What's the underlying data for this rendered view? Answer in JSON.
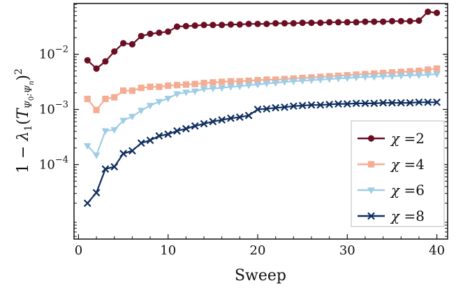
{
  "chart_data": {
    "type": "line",
    "xlabel": "Sweep",
    "ylabel": "1 − λ₁(T_Ψ₀:Ψₙ)²",
    "yscale": "log",
    "xlim": [
      -0.5,
      41.2
    ],
    "ylim_log10": [
      -5.35,
      -1.08
    ],
    "x_ticks": [
      0,
      10,
      20,
      30,
      40
    ],
    "x_tick_labels": [
      "0",
      "10",
      "20",
      "30",
      "40"
    ],
    "y_ticks_log10": [
      -4,
      -3,
      -2
    ],
    "y_tick_labels": [
      {
        "base": "10",
        "exp": "−4"
      },
      {
        "base": "10",
        "exp": "−3"
      },
      {
        "base": "10",
        "exp": "−2"
      }
    ],
    "grid": false,
    "legend_position": "lower-right",
    "x": [
      1,
      2,
      3,
      4,
      5,
      6,
      7,
      8,
      9,
      10,
      11,
      12,
      13,
      14,
      15,
      16,
      17,
      18,
      19,
      20,
      21,
      22,
      23,
      24,
      25,
      26,
      27,
      28,
      29,
      30,
      31,
      32,
      33,
      34,
      35,
      36,
      37,
      38,
      39,
      40
    ],
    "series": [
      {
        "name": "χ =2",
        "legend_symbol": "χ",
        "legend_value": "=2",
        "color": "#6b0e24",
        "marker": "circle",
        "values_log10": [
          -2.11,
          -2.26,
          -2.13,
          -1.95,
          -1.8,
          -1.82,
          -1.67,
          -1.63,
          -1.61,
          -1.59,
          -1.5,
          -1.49,
          -1.48,
          -1.47,
          -1.47,
          -1.47,
          -1.46,
          -1.46,
          -1.45,
          -1.45,
          -1.45,
          -1.44,
          -1.44,
          -1.44,
          -1.43,
          -1.43,
          -1.43,
          -1.42,
          -1.42,
          -1.42,
          -1.42,
          -1.41,
          -1.41,
          -1.41,
          -1.4,
          -1.4,
          -1.4,
          -1.39,
          -1.23,
          -1.25
        ]
      },
      {
        "name": "χ =4",
        "legend_symbol": "χ",
        "legend_value": "=4",
        "color": "#f4ad93",
        "marker": "square",
        "values_log10": [
          -2.81,
          -3.01,
          -2.81,
          -2.78,
          -2.66,
          -2.66,
          -2.61,
          -2.59,
          -2.59,
          -2.57,
          -2.56,
          -2.55,
          -2.54,
          -2.52,
          -2.51,
          -2.5,
          -2.49,
          -2.49,
          -2.48,
          -2.47,
          -2.46,
          -2.46,
          -2.45,
          -2.44,
          -2.43,
          -2.42,
          -2.41,
          -2.4,
          -2.39,
          -2.38,
          -2.37,
          -2.36,
          -2.35,
          -2.34,
          -2.33,
          -2.32,
          -2.31,
          -2.3,
          -2.28,
          -2.26
        ]
      },
      {
        "name": "χ =6",
        "legend_symbol": "χ",
        "legend_value": "=6",
        "color": "#9fcde6",
        "marker": "triangle-down",
        "values_log10": [
          -3.66,
          -3.83,
          -3.39,
          -3.37,
          -3.2,
          -3.13,
          -3.02,
          -2.93,
          -2.86,
          -2.8,
          -2.72,
          -2.69,
          -2.67,
          -2.63,
          -2.62,
          -2.61,
          -2.59,
          -2.58,
          -2.56,
          -2.55,
          -2.53,
          -2.52,
          -2.5,
          -2.49,
          -2.48,
          -2.47,
          -2.46,
          -2.45,
          -2.44,
          -2.43,
          -2.42,
          -2.41,
          -2.41,
          -2.4,
          -2.4,
          -2.39,
          -2.38,
          -2.38,
          -2.37,
          -2.36
        ]
      },
      {
        "name": "χ =8",
        "legend_symbol": "χ",
        "legend_value": "=8",
        "color": "#0f2f5f",
        "marker": "x",
        "values_log10": [
          -4.7,
          -4.51,
          -4.08,
          -4.04,
          -3.8,
          -3.75,
          -3.61,
          -3.56,
          -3.48,
          -3.45,
          -3.39,
          -3.35,
          -3.3,
          -3.26,
          -3.22,
          -3.19,
          -3.16,
          -3.14,
          -3.11,
          -3.0,
          -2.99,
          -2.97,
          -2.96,
          -2.94,
          -2.93,
          -2.92,
          -2.92,
          -2.91,
          -2.9,
          -2.9,
          -2.89,
          -2.89,
          -2.89,
          -2.88,
          -2.88,
          -2.88,
          -2.88,
          -2.87,
          -2.87,
          -2.87
        ]
      }
    ]
  }
}
